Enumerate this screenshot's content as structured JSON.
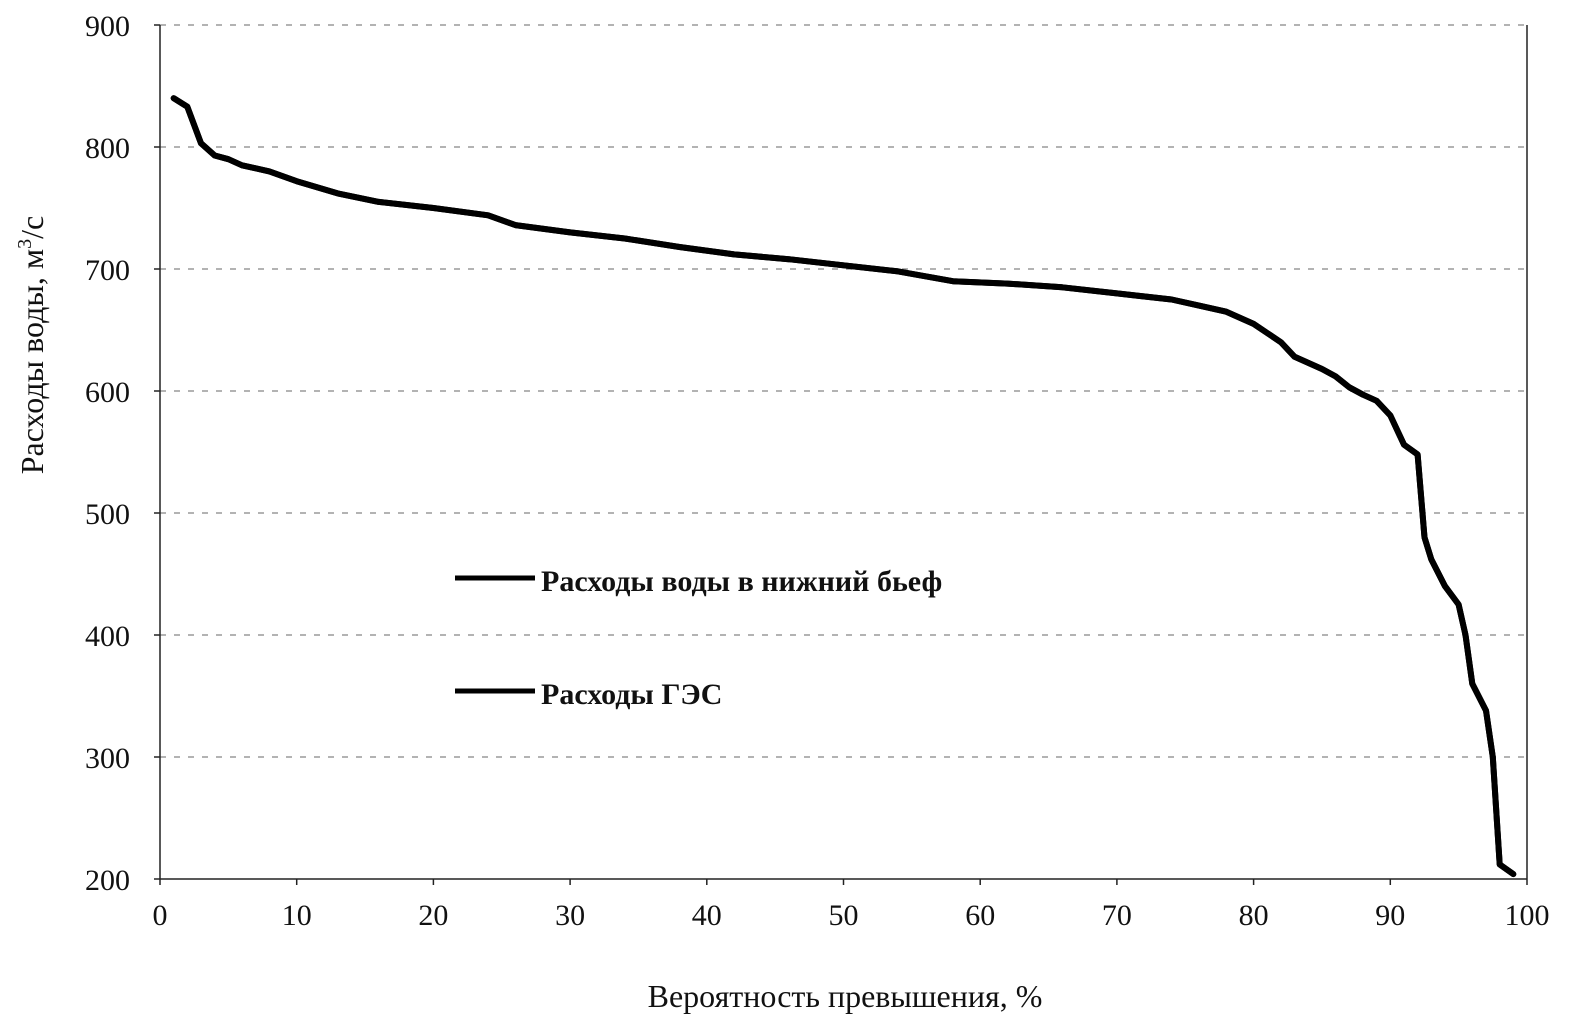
{
  "chart_data": {
    "type": "line",
    "title": "",
    "xlabel": "Вероятность превышения,  %",
    "ylabel": "Расходы воды, м³/с",
    "ylabel_main": "Расходы воды, м",
    "ylabel_sup": "3",
    "ylabel_tail": "/с",
    "xlim": [
      0,
      100
    ],
    "ylim": [
      200,
      900
    ],
    "xticks": [
      0,
      10,
      20,
      30,
      40,
      50,
      60,
      70,
      80,
      90,
      100
    ],
    "yticks": [
      200,
      300,
      400,
      500,
      600,
      700,
      800,
      900
    ],
    "grid": true,
    "legend_position": "center-left",
    "series": [
      {
        "name": "Расходы воды в нижний бьеф",
        "color": "#000000",
        "x": [
          1,
          2,
          3,
          4,
          5,
          6,
          8,
          10,
          13,
          16,
          20,
          24,
          26,
          30,
          34,
          38,
          42,
          46,
          50,
          54,
          58,
          62,
          66,
          70,
          74,
          76,
          78,
          80,
          82,
          83,
          85,
          86,
          87,
          88,
          89,
          90,
          91,
          92,
          92.5,
          93,
          94,
          95,
          95.5,
          96,
          97,
          97.5,
          98,
          99
        ],
        "y": [
          840,
          833,
          803,
          793,
          790,
          785,
          780,
          772,
          762,
          755,
          750,
          744,
          736,
          730,
          725,
          718,
          712,
          708,
          703,
          698,
          690,
          688,
          685,
          680,
          675,
          670,
          665,
          655,
          640,
          628,
          618,
          612,
          603,
          597,
          592,
          580,
          556,
          548,
          480,
          462,
          440,
          425,
          400,
          360,
          338,
          300,
          212,
          204
        ]
      },
      {
        "name": "Расходы ГЭС",
        "color": "#000000",
        "x": [
          1,
          2,
          3,
          4,
          5,
          6,
          8,
          10,
          13,
          16,
          20,
          24,
          26,
          30,
          34,
          38,
          42,
          46,
          50,
          54,
          58,
          62,
          66,
          70,
          74,
          76,
          78,
          80,
          82,
          83,
          85,
          86,
          87,
          88,
          89,
          90,
          91,
          92,
          92.5,
          93,
          94,
          95,
          95.5,
          96,
          97,
          97.5,
          98,
          99
        ],
        "y": [
          840,
          833,
          803,
          793,
          790,
          785,
          780,
          772,
          762,
          755,
          750,
          744,
          736,
          730,
          725,
          718,
          712,
          708,
          703,
          698,
          690,
          688,
          685,
          680,
          675,
          670,
          665,
          655,
          640,
          628,
          618,
          612,
          603,
          597,
          592,
          580,
          556,
          548,
          480,
          462,
          440,
          425,
          400,
          360,
          338,
          300,
          212,
          204
        ]
      }
    ]
  }
}
